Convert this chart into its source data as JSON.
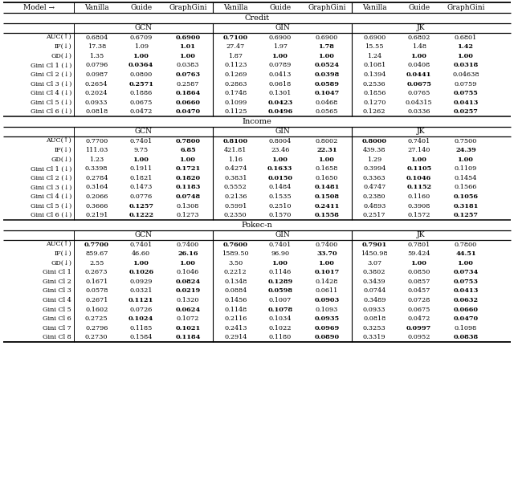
{
  "header_row": [
    "Model →",
    "Vanilla",
    "Guide",
    "GraphGini",
    "Vanilla",
    "Guide",
    "GraphGini",
    "Vanilla",
    "Guide",
    "GraphGini"
  ],
  "sections": [
    {
      "name": "Credit",
      "rows": [
        {
          "label": "AUC(↑)",
          "vals": [
            "0.6804",
            "0.6709",
            "0.6900",
            "0.7100",
            "0.6900",
            "0.6900",
            "0.6900",
            "0.6802",
            "0.6801"
          ],
          "bold": [
            false,
            false,
            true,
            true,
            false,
            false,
            false,
            false,
            false
          ]
        },
        {
          "label": "IF(↓)",
          "vals": [
            "17.38",
            "1.09",
            "1.01",
            "27.47",
            "1.97",
            "1.78",
            "15.55",
            "1.48",
            "1.42"
          ],
          "bold": [
            false,
            false,
            true,
            false,
            false,
            true,
            false,
            false,
            true
          ]
        },
        {
          "label": "GD(↓)",
          "vals": [
            "1.35",
            "1.00",
            "1.00",
            "1.87",
            "1.00",
            "1.00",
            "1.24",
            "1.00",
            "1.00"
          ],
          "bold": [
            false,
            true,
            true,
            false,
            true,
            true,
            false,
            true,
            true
          ]
        },
        {
          "label": "Gini Cl 1 (↓)",
          "vals": [
            "0.0796",
            "0.0364",
            "0.0383",
            "0.1123",
            "0.0789",
            "0.0524",
            "0.1081",
            "0.0408",
            "0.0318"
          ],
          "bold": [
            false,
            true,
            false,
            false,
            false,
            true,
            false,
            false,
            true
          ]
        },
        {
          "label": "Gini Cl 2 (↓)",
          "vals": [
            "0.0987",
            "0.0800",
            "0.0763",
            "0.1269",
            "0.0413",
            "0.0398",
            "0.1394",
            "0.0441",
            "0.04638"
          ],
          "bold": [
            false,
            false,
            true,
            false,
            false,
            true,
            false,
            true,
            false
          ]
        },
        {
          "label": "Gini Cl 3 (↓)",
          "vals": [
            "0.2654",
            "0.2571",
            "0.2587",
            "0.2863",
            "0.0618",
            "0.0589",
            "0.2536",
            "0.0675",
            "0.0759"
          ],
          "bold": [
            false,
            true,
            false,
            false,
            false,
            true,
            false,
            true,
            false
          ]
        },
        {
          "label": "Gini Cl 4 (↓)",
          "vals": [
            "0.2024",
            "0.1886",
            "0.1864",
            "0.1748",
            "0.1301",
            "0.1047",
            "0.1856",
            "0.0765",
            "0.0755"
          ],
          "bold": [
            false,
            false,
            true,
            false,
            false,
            true,
            false,
            false,
            true
          ]
        },
        {
          "label": "Gini Cl 5 (↓)",
          "vals": [
            "0.0933",
            "0.0675",
            "0.0660",
            "0.1099",
            "0.0423",
            "0.0468",
            "0.1270",
            "0.04315",
            "0.0413"
          ],
          "bold": [
            false,
            false,
            true,
            false,
            true,
            false,
            false,
            false,
            true
          ]
        },
        {
          "label": "Gini Cl 6 (↓)",
          "vals": [
            "0.0818",
            "0.0472",
            "0.0470",
            "0.1125",
            "0.0496",
            "0.0565",
            "0.1262",
            "0.0336",
            "0.0257"
          ],
          "bold": [
            false,
            false,
            true,
            false,
            true,
            false,
            false,
            false,
            true
          ]
        }
      ]
    },
    {
      "name": "Income",
      "rows": [
        {
          "label": "AUC(↑)",
          "vals": [
            "0.7700",
            "0.7401",
            "0.7800",
            "0.8100",
            "0.8004",
            "0.8002",
            "0.8000",
            "0.7401",
            "0.7500"
          ],
          "bold": [
            false,
            false,
            true,
            true,
            false,
            false,
            true,
            false,
            false
          ]
        },
        {
          "label": "IF(↓)",
          "vals": [
            "111.03",
            "9.75",
            "6.85",
            "421.81",
            "23.46",
            "22.31",
            "439.38",
            "27.140",
            "24.39"
          ],
          "bold": [
            false,
            false,
            true,
            false,
            false,
            true,
            false,
            false,
            true
          ]
        },
        {
          "label": "GD(↓)",
          "vals": [
            "1.23",
            "1.00",
            "1.00",
            "1.16",
            "1.00",
            "1.00",
            "1.29",
            "1.00",
            "1.00"
          ],
          "bold": [
            false,
            true,
            true,
            false,
            true,
            true,
            false,
            true,
            true
          ]
        },
        {
          "label": "Gini Cl 1 (↓)",
          "vals": [
            "0.3398",
            "0.1911",
            "0.1721",
            "0.4274",
            "0.1633",
            "0.1658",
            "0.3994",
            "0.1105",
            "0.1109"
          ],
          "bold": [
            false,
            false,
            true,
            false,
            true,
            false,
            false,
            true,
            false
          ]
        },
        {
          "label": "Gini Cl 2 (↓)",
          "vals": [
            "0.2784",
            "0.1821",
            "0.1820",
            "0.3831",
            "0.0150",
            "0.1650",
            "0.3363",
            "0.1046",
            "0.1454"
          ],
          "bold": [
            false,
            false,
            true,
            false,
            true,
            false,
            false,
            true,
            false
          ]
        },
        {
          "label": "Gini Cl 3 (↓)",
          "vals": [
            "0.3164",
            "0.1473",
            "0.1183",
            "0.5552",
            "0.1484",
            "0.1481",
            "0.4747",
            "0.1152",
            "0.1566"
          ],
          "bold": [
            false,
            false,
            true,
            false,
            false,
            true,
            false,
            true,
            false
          ]
        },
        {
          "label": "Gini Cl 4 (↓)",
          "vals": [
            "0.2066",
            "0.0776",
            "0.0748",
            "0.2136",
            "0.1535",
            "0.1508",
            "0.2380",
            "0.1160",
            "0.1056"
          ],
          "bold": [
            false,
            false,
            true,
            false,
            false,
            true,
            false,
            false,
            true
          ]
        },
        {
          "label": "Gini Cl 5 (↓)",
          "vals": [
            "0.3666",
            "0.1257",
            "0.1308",
            "0.5991",
            "0.2510",
            "0.2411",
            "0.4893",
            "0.3908",
            "0.3181"
          ],
          "bold": [
            false,
            true,
            false,
            false,
            false,
            true,
            false,
            false,
            true
          ]
        },
        {
          "label": "Gini Cl 6 (↓)",
          "vals": [
            "0.2191",
            "0.1222",
            "0.1273",
            "0.2350",
            "0.1570",
            "0.1558",
            "0.2517",
            "0.1572",
            "0.1257"
          ],
          "bold": [
            false,
            true,
            false,
            false,
            false,
            true,
            false,
            false,
            true
          ]
        }
      ]
    },
    {
      "name": "Pokec-n",
      "rows": [
        {
          "label": "AUC(↑)",
          "vals": [
            "0.7700",
            "0.7401",
            "0.7400",
            "0.7600",
            "0.7401",
            "0.7400",
            "0.7901",
            "0.7801",
            "0.7800"
          ],
          "bold": [
            true,
            false,
            false,
            true,
            false,
            false,
            true,
            false,
            false
          ]
        },
        {
          "label": "IF(↓)",
          "vals": [
            "859.67",
            "46.60",
            "26.16",
            "1589.50",
            "96.90",
            "33.70",
            "1450.98",
            "59.424",
            "44.51"
          ],
          "bold": [
            false,
            false,
            true,
            false,
            false,
            true,
            false,
            false,
            true
          ]
        },
        {
          "label": "GD(↓)",
          "vals": [
            "2.55",
            "1.00",
            "1.00",
            "3.50",
            "1.00",
            "1.00",
            "3.07",
            "1.00",
            "1.00"
          ],
          "bold": [
            false,
            true,
            true,
            false,
            true,
            true,
            false,
            true,
            true
          ]
        },
        {
          "label": "Gini Cl 1",
          "vals": [
            "0.2673",
            "0.1026",
            "0.1046",
            "0.2212",
            "0.1146",
            "0.1017",
            "0.3802",
            "0.0850",
            "0.0734"
          ],
          "bold": [
            false,
            true,
            false,
            false,
            false,
            true,
            false,
            false,
            true
          ]
        },
        {
          "label": "Gini Cl 2",
          "vals": [
            "0.1671",
            "0.0929",
            "0.0824",
            "0.1348",
            "0.1289",
            "0.1428",
            "0.3439",
            "0.0857",
            "0.0753"
          ],
          "bold": [
            false,
            false,
            true,
            false,
            true,
            false,
            false,
            false,
            true
          ]
        },
        {
          "label": "Gini Cl 3",
          "vals": [
            "0.0578",
            "0.0321",
            "0.0219",
            "0.0884",
            "0.0598",
            "0.0611",
            "0.0744",
            "0.0457",
            "0.0413"
          ],
          "bold": [
            false,
            false,
            true,
            false,
            true,
            false,
            false,
            false,
            true
          ]
        },
        {
          "label": "Gini Cl 4",
          "vals": [
            "0.2671",
            "0.1121",
            "0.1320",
            "0.1456",
            "0.1007",
            "0.0903",
            "0.3489",
            "0.0728",
            "0.0632"
          ],
          "bold": [
            false,
            true,
            false,
            false,
            false,
            true,
            false,
            false,
            true
          ]
        },
        {
          "label": "Gini Cl 5",
          "vals": [
            "0.1602",
            "0.0726",
            "0.0624",
            "0.1148",
            "0.1078",
            "0.1093",
            "0.0933",
            "0.0675",
            "0.0660"
          ],
          "bold": [
            false,
            false,
            true,
            false,
            true,
            false,
            false,
            false,
            true
          ]
        },
        {
          "label": "Gini Cl 6",
          "vals": [
            "0.2725",
            "0.1024",
            "0.1072",
            "0.2116",
            "0.1034",
            "0.0935",
            "0.0818",
            "0.0472",
            "0.0470"
          ],
          "bold": [
            false,
            true,
            false,
            false,
            false,
            true,
            false,
            false,
            true
          ]
        },
        {
          "label": "Gini Cl 7",
          "vals": [
            "0.2796",
            "0.1185",
            "0.1021",
            "0.2413",
            "0.1022",
            "0.0969",
            "0.3253",
            "0.0997",
            "0.1098"
          ],
          "bold": [
            false,
            false,
            true,
            false,
            false,
            true,
            false,
            true,
            false
          ]
        },
        {
          "label": "Gini Cl 8",
          "vals": [
            "0.2730",
            "0.1584",
            "0.1184",
            "0.2914",
            "0.1180",
            "0.0890",
            "0.3319",
            "0.0952",
            "0.0838"
          ],
          "bold": [
            false,
            false,
            true,
            false,
            false,
            true,
            false,
            false,
            true
          ]
        }
      ]
    }
  ],
  "col_header_smallcaps": [
    "Vanilla",
    "Guide",
    "GraphGini"
  ],
  "figsize": [
    6.4,
    5.98
  ],
  "dpi": 100,
  "fontsize_header": 6.5,
  "fontsize_data": 6.0,
  "fontsize_section": 7.0,
  "fontsize_sub": 6.5
}
